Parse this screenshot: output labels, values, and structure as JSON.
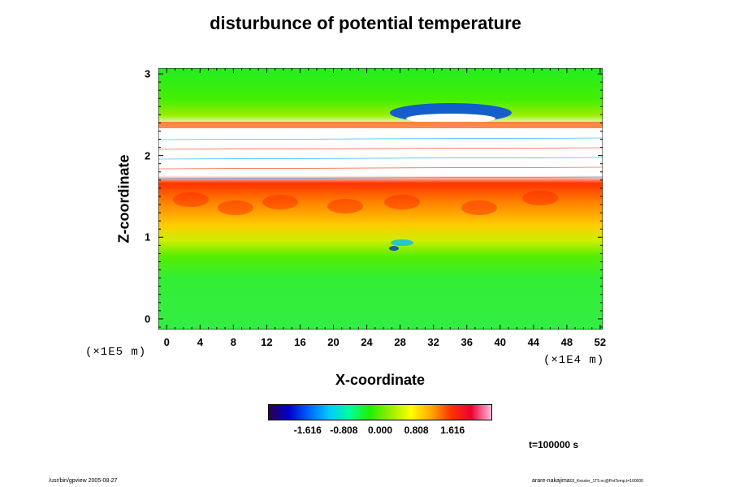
{
  "chart_data": {
    "type": "heatmap",
    "title": "disturbunce of potential temperature",
    "xlabel": "X-coordinate",
    "ylabel": "Z-coordinate",
    "x_scale_note": "(×1E4 m)",
    "y_scale_note": "(×1E5 m)",
    "x_ticks": [
      "0",
      "4",
      "8",
      "12",
      "16",
      "20",
      "24",
      "28",
      "32",
      "36",
      "40",
      "44",
      "48",
      "52"
    ],
    "x_tick_values": [
      0,
      4,
      8,
      12,
      16,
      20,
      24,
      28,
      32,
      36,
      40,
      44,
      48,
      52
    ],
    "xlim": [
      -1,
      52.3
    ],
    "y_ticks": [
      "0",
      "1",
      "2",
      "3"
    ],
    "y_tick_values": [
      0,
      1,
      2,
      3
    ],
    "ylim": [
      -0.13,
      3.07
    ],
    "colorbar": {
      "ticks": [
        "-1.616",
        "-0.808",
        "0.000",
        "0.808",
        "1.616"
      ],
      "tick_values": [
        -1.616,
        -0.808,
        0.0,
        0.808,
        1.616
      ],
      "range": [
        -2.5,
        2.5
      ],
      "colors": [
        "#2a0050",
        "#0000cc",
        "#0066ff",
        "#00ccff",
        "#00ff99",
        "#22ee00",
        "#99ee00",
        "#ffff00",
        "#ffaa00",
        "#ff3300",
        "#ee0033",
        "#ffbbdd"
      ]
    },
    "field_description_bands": [
      {
        "z_range": [
          -0.13,
          0.75
        ],
        "value": 0.0
      },
      {
        "z_range": [
          0.75,
          1.0
        ],
        "value": 0.3
      },
      {
        "z_range": [
          1.0,
          1.45
        ],
        "value": 0.9
      },
      {
        "z_range": [
          1.45,
          1.7
        ],
        "value": 1.8
      },
      {
        "z_range": [
          1.7,
          2.3
        ],
        "value": "undefined"
      },
      {
        "z_range": [
          2.3,
          2.5
        ],
        "value": 1.0
      },
      {
        "z_range": [
          2.5,
          3.07
        ],
        "value": -0.1
      }
    ],
    "annotation": "t=100000 s"
  },
  "footer": {
    "left": "/usr/bin/gpview 2005-08-27",
    "right": "arare-nakajima",
    "right_small": "03_Kessler_1T5.nc@PotTemp,t=100000"
  }
}
